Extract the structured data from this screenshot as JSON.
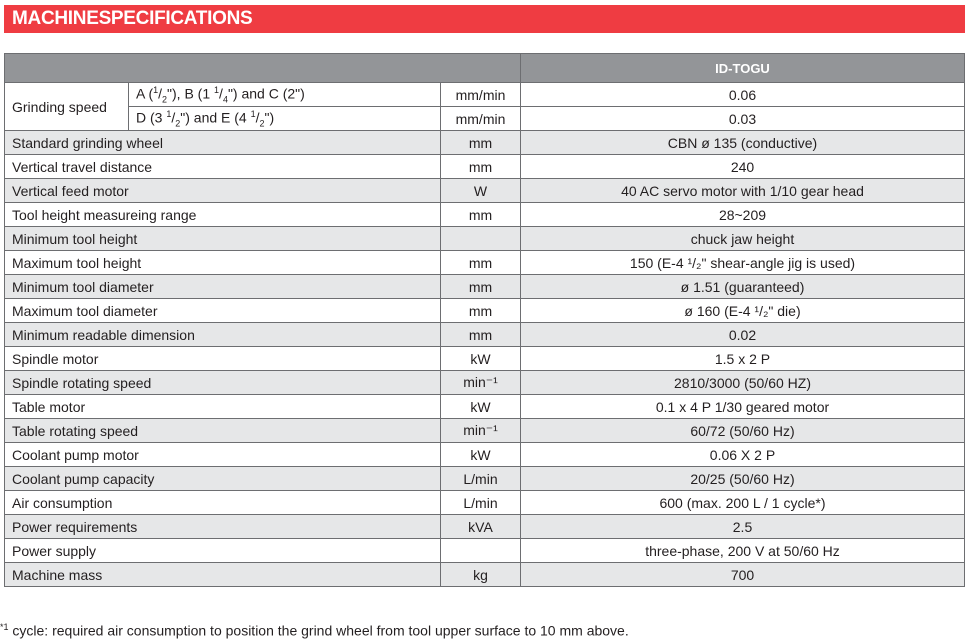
{
  "title": "MACHINESPECIFICATIONS",
  "header": {
    "model": "ID-TOGU"
  },
  "grinding": {
    "label": "Grinding speed",
    "sub1": {
      "a": "A (",
      "a_n": "1",
      "a_d": "2",
      "b": "\"), B (1 ",
      "b_n": "1",
      "b_d": "4",
      "c": "\") and C (2\")",
      "unit": "mm/min",
      "value": "0.06"
    },
    "sub2": {
      "a": "D (3 ",
      "a_n": "1",
      "a_d": "2",
      "b": "\") and E (4 ",
      "b_n": "1",
      "b_d": "2",
      "c": "\")",
      "unit": "mm/min",
      "value": "0.03"
    }
  },
  "rows": [
    {
      "label": "Standard grinding wheel",
      "unit": "mm",
      "value": "CBN ø 135 (conductive)"
    },
    {
      "label": "Vertical travel distance",
      "unit": "mm",
      "value": "240"
    },
    {
      "label": "Vertical feed motor",
      "unit": "W",
      "value": "40 AC servo motor with 1/10 gear head"
    },
    {
      "label": "Tool height measureing range",
      "unit": "mm",
      "value": "28~209"
    },
    {
      "label": "Minimum tool height",
      "unit": "",
      "value": "chuck jaw height"
    },
    {
      "label": "Maximum tool height",
      "unit": "mm",
      "value": "150 (E-4 ¹/₂\" shear-angle jig is used)"
    },
    {
      "label": "Minimum tool diameter",
      "unit": "mm",
      "value": "ø 1.51 (guaranteed)"
    },
    {
      "label": "Maximum tool diameter",
      "unit": "mm",
      "value": "ø 160 (E-4 ¹/₂\" die)"
    },
    {
      "label": "Minimum readable dimension",
      "unit": "mm",
      "value": "0.02"
    },
    {
      "label": "Spindle motor",
      "unit": "kW",
      "value": "1.5 x 2 P"
    },
    {
      "label": "Spindle rotating speed",
      "unit": "min⁻¹",
      "value": "2810/3000 (50/60 HZ)"
    },
    {
      "label": "Table motor",
      "unit": "kW",
      "value": "0.1 x 4 P 1/30 geared motor"
    },
    {
      "label": "Table rotating speed",
      "unit": "min⁻¹",
      "value": "60/72 (50/60 Hz)"
    },
    {
      "label": "Coolant pump motor",
      "unit": "kW",
      "value": "0.06 X 2 P"
    },
    {
      "label": "Coolant pump capacity",
      "unit": "L/min",
      "value": "20/25 (50/60 Hz)"
    },
    {
      "label": "Air consumption",
      "unit": "L/min",
      "value": "600 (max. 200 L / 1 cycle*)"
    },
    {
      "label": "Power requirements",
      "unit": "kVA",
      "value": "2.5"
    },
    {
      "label": "Power supply",
      "unit": "",
      "value": "three-phase, 200 V at 50/60 Hz"
    },
    {
      "label": "Machine mass",
      "unit": "kg",
      "value": "700"
    }
  ],
  "footnote": {
    "mark": "*1",
    "text": " cycle:  required air consumption to position the grind wheel from tool upper surface to 10 mm above."
  },
  "colors": {
    "banner": "#ef3c42",
    "header": "#939598",
    "stripe": "#e6e7e8"
  }
}
